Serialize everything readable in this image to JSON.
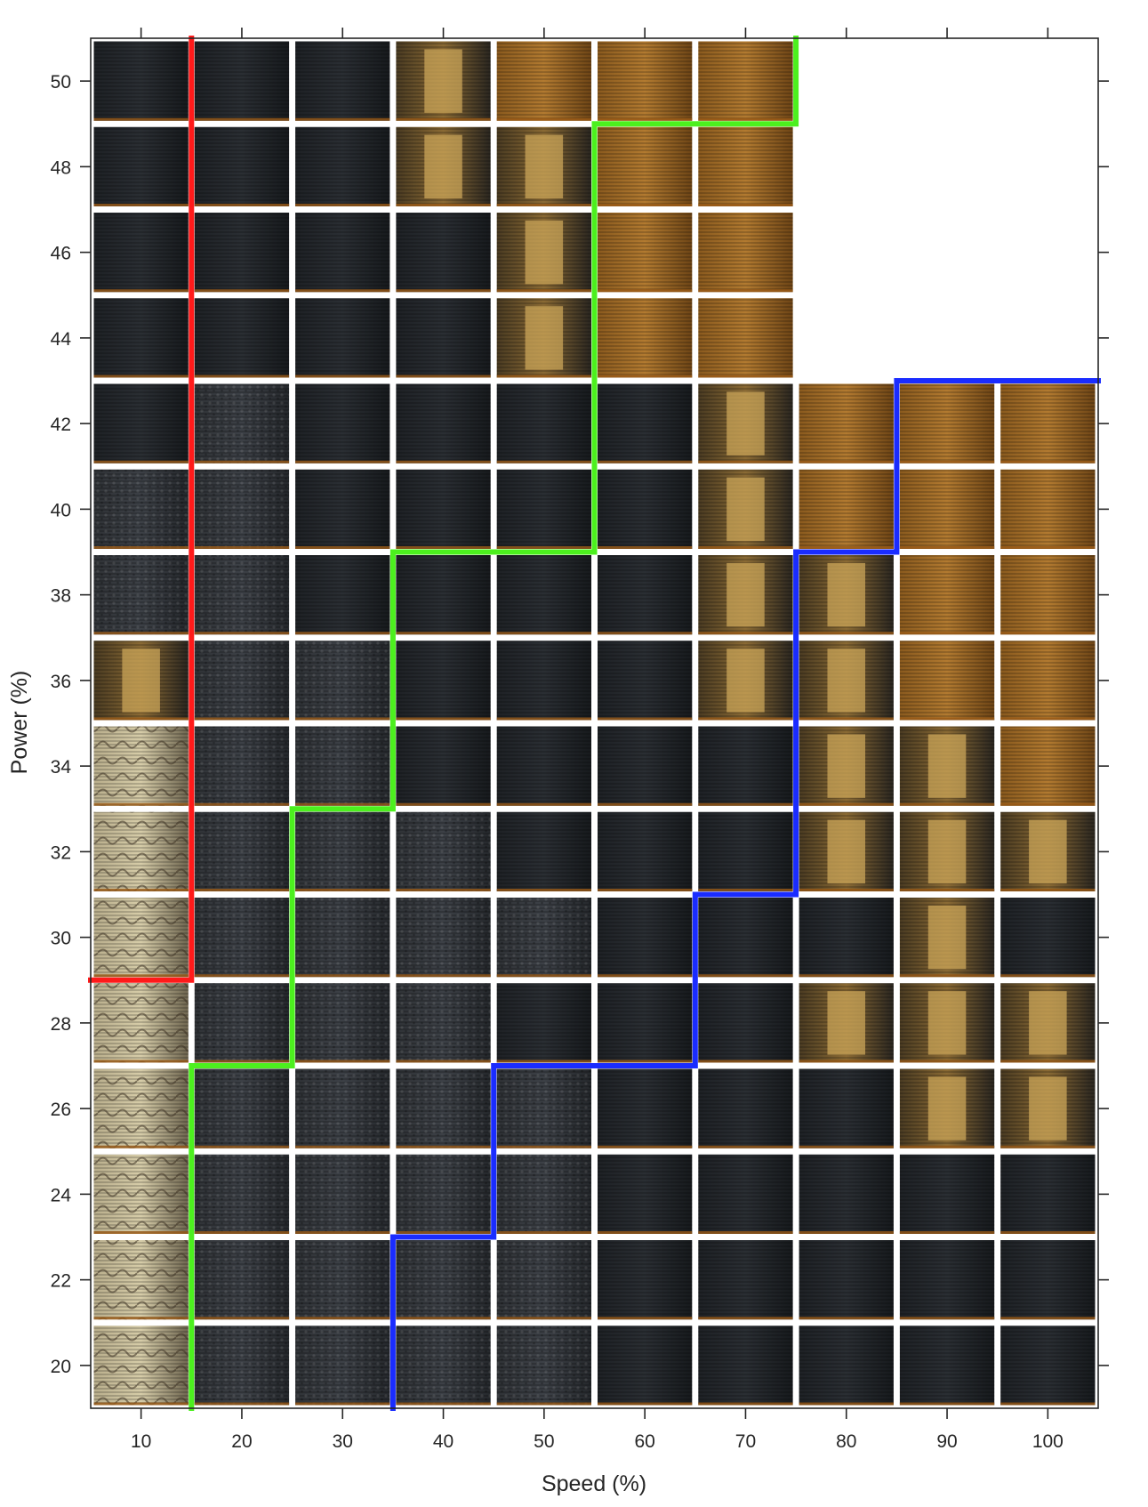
{
  "chart_data": {
    "type": "heatmap",
    "title": "",
    "xlabel": "Speed (%)",
    "ylabel": "Power (%)",
    "x_ticks": [
      10,
      20,
      30,
      40,
      50,
      60,
      70,
      80,
      90,
      100
    ],
    "y_ticks": [
      20,
      22,
      24,
      26,
      28,
      30,
      32,
      34,
      36,
      38,
      40,
      42,
      44,
      46,
      48,
      50
    ],
    "xlim": [
      5,
      105
    ],
    "ylim": [
      19,
      51
    ],
    "grid": false,
    "cell_value_legend": {
      "1": "dark grey, rough/fibrous surface",
      "2": "dark grey/black, smooth striped surface",
      "3": "mixed dark and tan/golden patches",
      "4": "mostly tan/orange/golden surface",
      "5": "pale, heavily cracked light surface"
    },
    "cells": [
      [
        5,
        1,
        1,
        1,
        1,
        2,
        2,
        2,
        2,
        2
      ],
      [
        5,
        1,
        1,
        1,
        1,
        2,
        2,
        2,
        2,
        2
      ],
      [
        5,
        1,
        1,
        1,
        1,
        2,
        2,
        2,
        2,
        2
      ],
      [
        5,
        1,
        1,
        1,
        1,
        2,
        2,
        2,
        3,
        3
      ],
      [
        5,
        1,
        1,
        1,
        2,
        2,
        2,
        3,
        3,
        3
      ],
      [
        5,
        1,
        1,
        1,
        1,
        2,
        2,
        2,
        3,
        2
      ],
      [
        5,
        1,
        1,
        1,
        2,
        2,
        2,
        3,
        3,
        3
      ],
      [
        5,
        1,
        1,
        2,
        2,
        2,
        2,
        3,
        3,
        4
      ],
      [
        3,
        1,
        1,
        2,
        2,
        2,
        3,
        3,
        4,
        4
      ],
      [
        1,
        1,
        2,
        2,
        2,
        2,
        3,
        3,
        4,
        4
      ],
      [
        1,
        1,
        2,
        2,
        2,
        2,
        3,
        4,
        4,
        4
      ],
      [
        2,
        1,
        2,
        2,
        2,
        2,
        3,
        4,
        4,
        4
      ],
      [
        2,
        2,
        2,
        2,
        3,
        4,
        4,
        null,
        null,
        null
      ],
      [
        2,
        2,
        2,
        2,
        3,
        4,
        4,
        null,
        null,
        null
      ],
      [
        2,
        2,
        2,
        3,
        3,
        4,
        4,
        null,
        null,
        null
      ],
      [
        2,
        2,
        2,
        3,
        4,
        4,
        4,
        null,
        null,
        null
      ]
    ],
    "boundaries": [
      {
        "color": "#ff1a1a",
        "points": [
          [
            15,
            51
          ],
          [
            15,
            29
          ],
          [
            5,
            29
          ]
        ]
      },
      {
        "color": "#4cf01e",
        "points": [
          [
            75,
            51
          ],
          [
            75,
            49
          ],
          [
            55,
            49
          ],
          [
            55,
            39
          ],
          [
            35,
            39
          ],
          [
            35,
            33
          ],
          [
            25,
            33
          ],
          [
            25,
            27
          ],
          [
            15,
            27
          ],
          [
            15,
            19
          ]
        ]
      },
      {
        "color": "#1a2cff",
        "points": [
          [
            105,
            43
          ],
          [
            85,
            43
          ],
          [
            85,
            39
          ],
          [
            75,
            39
          ],
          [
            75,
            31
          ],
          [
            65,
            31
          ],
          [
            65,
            27
          ],
          [
            45,
            27
          ],
          [
            45,
            23
          ],
          [
            35,
            23
          ],
          [
            35,
            19
          ]
        ]
      }
    ],
    "palette": {
      "1": [
        "#2f3236",
        "#3c4046",
        "#25282c"
      ],
      "2": [
        "#1e2125",
        "#2a2e33",
        "#171a1d"
      ],
      "3": [
        "#4a3b22",
        "#8a6a34",
        "#2a2620"
      ],
      "4": [
        "#8a5a1e",
        "#b27a30",
        "#6e4516"
      ],
      "5": [
        "#b9ae8c",
        "#d6cca8",
        "#6f6650"
      ]
    },
    "frame_color": "#262626",
    "stroke_outline": "#111111"
  }
}
